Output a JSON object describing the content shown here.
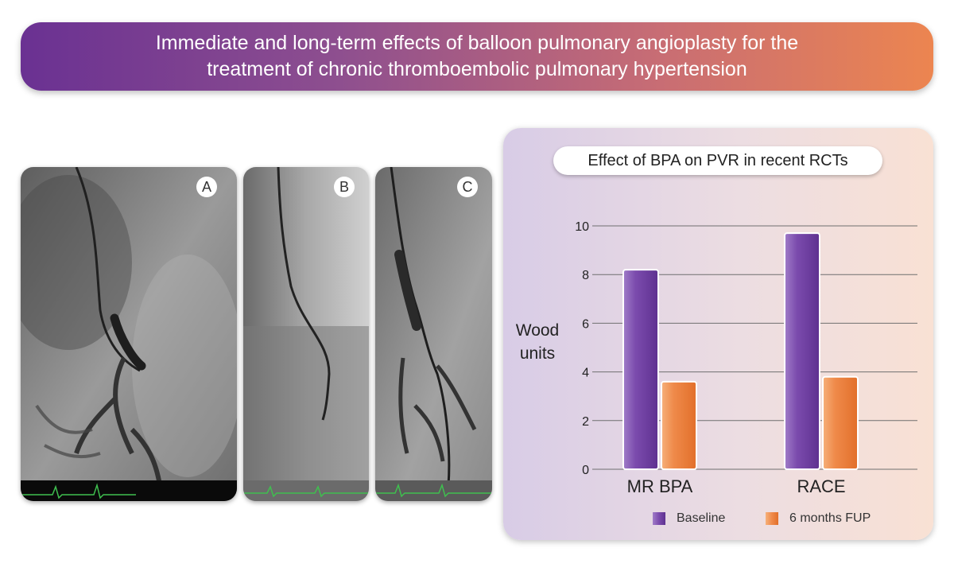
{
  "banner": {
    "line1": "Immediate and long-term effects of balloon pulmonary angioplasty for the",
    "line2": "treatment of chronic thromboembolic pulmonary hypertension"
  },
  "panels": [
    {
      "label": "A"
    },
    {
      "label": "B"
    },
    {
      "label": "C"
    }
  ],
  "colors": {
    "baseline": "#7b4bad",
    "followup": "#ef8a4a",
    "ecg": "#3fbf4f"
  },
  "chart_data": {
    "type": "bar",
    "title": "Effect of BPA on PVR in recent RCTs",
    "ylabel_line1": "Wood",
    "ylabel_line2": "units",
    "categories": [
      "MR BPA",
      "RACE"
    ],
    "series": [
      {
        "name": "Baseline",
        "values": [
          8.2,
          9.7
        ]
      },
      {
        "name": "6 months FUP",
        "values": [
          3.6,
          3.8
        ]
      }
    ],
    "ylim": [
      0,
      10
    ],
    "yticks": [
      0,
      2,
      4,
      6,
      8,
      10
    ],
    "grid": true,
    "legend_position": "bottom"
  }
}
